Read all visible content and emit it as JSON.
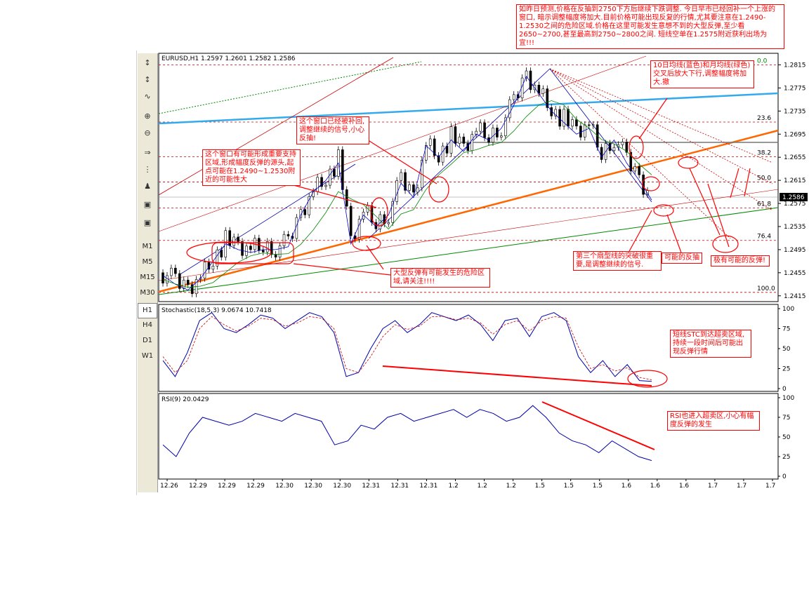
{
  "toolbar": {
    "tools": [
      "↕",
      "↕",
      "∿",
      "⊕",
      "⊖",
      "⇒",
      "⋮",
      "♟",
      "▣",
      "▣"
    ],
    "timeframes": [
      "M1",
      "M5",
      "M15",
      "M30",
      "H1",
      "H4",
      "D1",
      "W1"
    ],
    "active_timeframe": "H1"
  },
  "price_panel": {
    "header": "EURUSD,H1  1.2597 1.2601 1.2582 1.2586",
    "current_price": "1.2586",
    "y_ticks": [
      "1.2815",
      "1.2775",
      "1.2735",
      "1.2695",
      "1.2655",
      "1.2615",
      "1.2575",
      "1.2535",
      "1.2495",
      "1.2455",
      "1.2415"
    ],
    "fib_labels": [
      "0.0",
      "23.6",
      "38.2",
      "50.0",
      "61.8",
      "76.4",
      "100.0"
    ]
  },
  "stoch_panel": {
    "header": "Stochastic(18,5,3)  9.0674  10.7418",
    "y_ticks": [
      "100",
      "75",
      "50",
      "25",
      "0"
    ]
  },
  "rsi_panel": {
    "header": "RSI(9)  20.0429",
    "y_ticks": [
      "100",
      "75",
      "50",
      "25",
      "0"
    ]
  },
  "x_ticks": [
    "12.26",
    "12.29",
    "12.29",
    "12.29",
    "12.30",
    "12.30",
    "12.30",
    "12.31",
    "12.31",
    "12.31",
    "1.2",
    "1.2",
    "1.2",
    "1.5",
    "1.5",
    "1.5",
    "1.6",
    "1.6",
    "1.6",
    "1.7",
    "1.7",
    "1.7"
  ],
  "annotations": {
    "top": "如昨日预测,价格在反抽到2750下方后继续下跌调整. 今日早市已经回补一个上涨的窗口, 暗示调整幅度将加大.目前价格可能出现反复的行情,尤其要注意在1.2490-1.2530之间的危险区域.价格在这里可能发生意想不到的大型反弹,至少看2650~2700,甚至最高到2750~2800之间. 短线空单在1.2575附近获利出场为宜!!!",
    "window_filled": "这个窗口已经被补回,调整继续的信号,小心反抽!",
    "support_zone": "这个窗口有可能形成重要支持区域,形成幅度反弹的源头,起点可能在1.2490~1.2530附近的可能性大",
    "ma_cross": "10日均线(蓝色)和月均线(绿色)交叉后放大下行,调整幅度将加大.撤",
    "big_rebound": "大型反弹有可能发生的危险区域,请关注!!!!",
    "fan_break": "第三个扇型线的突破很重要,是调整继续的信号.",
    "possible_pullback": "可能的反抽",
    "possible_rebound": "极有可能的反弹!",
    "stc_oversold": "短线STC到达超卖区域,持续一段时间后可能出现反弹行情",
    "rsi_oversold": "RSI也进入超卖区,小心有幅度反弹的发生"
  },
  "colors": {
    "candle": "#000000",
    "ma_fast": "#0000cc",
    "ma_slow": "#008800",
    "support_line": "#ff6600",
    "resistance_line": "#33aaee",
    "fib_line": "#cc0000",
    "annotation": "#ff0000",
    "stoch_main": "#0000aa",
    "stoch_signal": "#cc0000",
    "rsi_line": "#0000aa"
  },
  "chart_data": [
    {
      "type": "candlestick",
      "title": "EURUSD,H1",
      "ylim": [
        1.2405,
        1.2835
      ],
      "x": [
        "12.26",
        "12.29",
        "12.29",
        "12.29",
        "12.30",
        "12.30",
        "12.30",
        "12.31",
        "12.31",
        "12.31",
        "1.2",
        "1.2",
        "1.2",
        "1.5",
        "1.5",
        "1.5",
        "1.6",
        "1.6",
        "1.6",
        "1.7",
        "1.7",
        "1.7"
      ],
      "close_path": [
        1.2455,
        1.244,
        1.243,
        1.245,
        1.248,
        1.251,
        1.25,
        1.2495,
        1.25,
        1.25,
        1.2505,
        1.256,
        1.26,
        1.262,
        1.265,
        1.251,
        1.256,
        1.254,
        1.256,
        1.2615,
        1.259,
        1.268,
        1.266,
        1.269,
        1.267,
        1.27,
        1.269,
        1.271,
        1.275,
        1.28,
        1.277,
        1.274,
        1.272,
        1.27,
        1.271,
        1.266,
        1.269,
        1.265,
        1.262,
        1.2586
      ],
      "last": {
        "open": 1.2597,
        "high": 1.2601,
        "low": 1.2582,
        "close": 1.2586
      },
      "fibonacci": {
        "0.0": 1.2815,
        "23.6": 1.2716,
        "38.2": 1.2656,
        "50.0": 1.2612,
        "61.8": 1.2567,
        "76.4": 1.2511,
        "100.0": 1.2421
      }
    },
    {
      "type": "line",
      "title": "Stochastic(18,5,3)",
      "ylim": [
        0,
        100
      ],
      "series": [
        {
          "name": "main",
          "values": [
            35,
            15,
            45,
            85,
            95,
            75,
            70,
            80,
            92,
            88,
            75,
            85,
            95,
            90,
            70,
            15,
            20,
            50,
            75,
            85,
            70,
            80,
            95,
            90,
            85,
            92,
            80,
            60,
            85,
            88,
            65,
            90,
            95,
            85,
            40,
            20,
            35,
            15,
            30,
            10,
            9
          ]
        },
        {
          "name": "signal",
          "values": [
            40,
            20,
            35,
            75,
            90,
            80,
            72,
            78,
            88,
            86,
            78,
            82,
            90,
            88,
            75,
            25,
            20,
            40,
            65,
            80,
            74,
            78,
            90,
            90,
            86,
            88,
            82,
            68,
            80,
            85,
            72,
            85,
            90,
            88,
            52,
            25,
            30,
            22,
            26,
            14,
            11
          ]
        }
      ]
    },
    {
      "type": "line",
      "title": "RSI(9)",
      "ylim": [
        0,
        100
      ],
      "series": [
        {
          "name": "RSI",
          "values": [
            40,
            25,
            55,
            75,
            70,
            65,
            70,
            80,
            75,
            70,
            80,
            75,
            70,
            40,
            45,
            65,
            60,
            75,
            80,
            70,
            75,
            80,
            85,
            75,
            85,
            80,
            70,
            75,
            90,
            75,
            55,
            45,
            40,
            30,
            45,
            35,
            25,
            20
          ]
        }
      ]
    }
  ]
}
